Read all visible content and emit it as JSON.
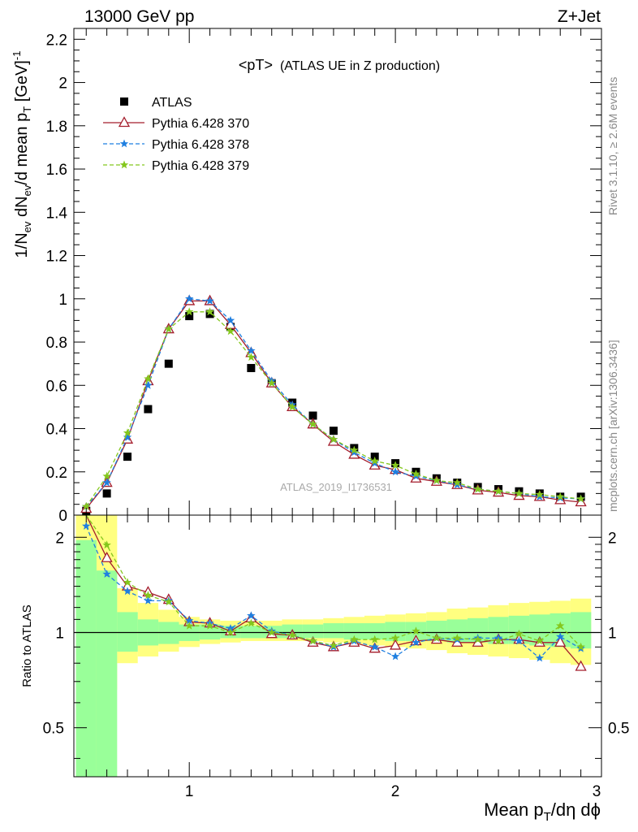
{
  "header": {
    "left": "13000 GeV pp",
    "right": "Z+Jet"
  },
  "side_labels": {
    "rivet": "Rivet 3.1.10, ≥ 2.6M events",
    "mcplots": "mcplots.cern.ch [arXiv:1306.3436]"
  },
  "chart_data": [
    {
      "type": "scatter",
      "title": "<pT>",
      "subtitle": "(ATLAS UE in Z production)",
      "watermark": "ATLAS_2019_I1736531",
      "ylabel_parts": {
        "a": "1/N",
        "b": "ev",
        "c": " dN",
        "d": "ev",
        "e": "/d mean p",
        "f": "T",
        "g": " [GeV]",
        "h": "-1"
      },
      "xlim": [
        0.44,
        3.0
      ],
      "ylim": [
        0,
        2.25
      ],
      "y_ticks": [
        "0",
        "0.2",
        "0.4",
        "0.6",
        "0.8",
        "1",
        "1.2",
        "1.4",
        "1.6",
        "1.8",
        "2",
        "2.2"
      ],
      "legend_position": "top-left",
      "x": [
        0.5,
        0.6,
        0.7,
        0.8,
        0.9,
        1.0,
        1.1,
        1.2,
        1.3,
        1.4,
        1.5,
        1.6,
        1.7,
        1.8,
        1.9,
        2.0,
        2.1,
        2.2,
        2.3,
        2.4,
        2.5,
        2.6,
        2.7,
        2.8,
        2.9
      ],
      "series": [
        {
          "name": "ATLAS",
          "color": "#000000",
          "marker": "square",
          "values": [
            0.02,
            0.1,
            0.27,
            0.49,
            0.7,
            0.92,
            0.93,
            0.87,
            0.68,
            0.61,
            0.52,
            0.46,
            0.39,
            0.31,
            0.27,
            0.24,
            0.2,
            0.17,
            0.15,
            0.13,
            0.12,
            0.11,
            0.1,
            0.085,
            0.085
          ]
        },
        {
          "name": "Pythia 6.428 370",
          "color": "#a41d2c",
          "marker": "triangle",
          "values": [
            0.03,
            0.15,
            0.35,
            0.62,
            0.86,
            0.99,
            0.99,
            0.88,
            0.75,
            0.61,
            0.5,
            0.42,
            0.34,
            0.28,
            0.23,
            0.21,
            0.17,
            0.155,
            0.14,
            0.115,
            0.105,
            0.09,
            0.085,
            0.07,
            0.06
          ]
        },
        {
          "name": "Pythia 6.428 378",
          "color": "#1f7fe0",
          "marker": "star",
          "values": [
            0.04,
            0.15,
            0.36,
            0.6,
            0.86,
            1.0,
            0.99,
            0.9,
            0.76,
            0.62,
            0.51,
            0.42,
            0.35,
            0.29,
            0.24,
            0.2,
            0.18,
            0.16,
            0.14,
            0.12,
            0.11,
            0.1,
            0.085,
            0.08,
            0.075
          ]
        },
        {
          "name": "Pythia 6.428 379",
          "color": "#84c71d",
          "marker": "star",
          "values": [
            0.04,
            0.18,
            0.38,
            0.63,
            0.86,
            0.94,
            0.94,
            0.85,
            0.73,
            0.61,
            0.5,
            0.42,
            0.35,
            0.3,
            0.25,
            0.23,
            0.19,
            0.16,
            0.15,
            0.12,
            0.11,
            0.1,
            0.095,
            0.085,
            0.075
          ]
        }
      ]
    },
    {
      "type": "line",
      "ylabel": "Ratio to ATLAS",
      "xlabel_parts": {
        "a": "Mean p",
        "b": "T",
        "c": "/dη dϕ"
      },
      "xlim": [
        0.44,
        3.0
      ],
      "ylim": [
        0.35,
        2.35
      ],
      "y_scale": "log",
      "y_ticks": [
        "0.5",
        "1",
        "2"
      ],
      "x_ticks": [
        "1",
        "2",
        "3"
      ],
      "reference_line": 1,
      "x": [
        0.5,
        0.6,
        0.7,
        0.8,
        0.9,
        1.0,
        1.1,
        1.2,
        1.3,
        1.4,
        1.5,
        1.6,
        1.7,
        1.8,
        1.9,
        2.0,
        2.1,
        2.2,
        2.3,
        2.4,
        2.5,
        2.6,
        2.7,
        2.8,
        2.9
      ],
      "bands": [
        {
          "name": "yellow",
          "color": "#ffff80",
          "low": [
            0.35,
            0.66,
            0.8,
            0.84,
            0.87,
            0.9,
            0.92,
            0.93,
            0.94,
            0.94,
            0.94,
            0.94,
            0.93,
            0.92,
            0.91,
            0.9,
            0.89,
            0.88,
            0.86,
            0.85,
            0.84,
            0.83,
            0.82,
            0.8,
            0.79
          ],
          "high": [
            2.35,
            2.35,
            1.38,
            1.24,
            1.18,
            1.12,
            1.1,
            1.09,
            1.09,
            1.09,
            1.1,
            1.1,
            1.11,
            1.12,
            1.13,
            1.14,
            1.15,
            1.16,
            1.19,
            1.2,
            1.22,
            1.24,
            1.25,
            1.26,
            1.28
          ]
        },
        {
          "name": "green",
          "color": "#99ff99",
          "low": [
            0.35,
            0.35,
            0.87,
            0.91,
            0.92,
            0.94,
            0.95,
            0.96,
            0.96,
            0.96,
            0.96,
            0.96,
            0.96,
            0.95,
            0.95,
            0.94,
            0.94,
            0.94,
            0.93,
            0.93,
            0.92,
            0.92,
            0.91,
            0.9,
            0.89
          ],
          "high": [
            1.96,
            1.57,
            1.16,
            1.1,
            1.08,
            1.06,
            1.06,
            1.05,
            1.05,
            1.05,
            1.06,
            1.06,
            1.07,
            1.07,
            1.07,
            1.08,
            1.08,
            1.09,
            1.1,
            1.11,
            1.12,
            1.13,
            1.14,
            1.15,
            1.16
          ]
        }
      ],
      "series": [
        {
          "name": "Pythia 6.428 370",
          "color": "#a41d2c",
          "marker": "triangle",
          "values": [
            2.35,
            1.72,
            1.4,
            1.34,
            1.27,
            1.08,
            1.07,
            1.01,
            1.11,
            0.99,
            0.98,
            0.93,
            0.9,
            0.93,
            0.89,
            0.91,
            0.94,
            0.95,
            0.93,
            0.93,
            0.95,
            0.95,
            0.93,
            0.93,
            0.78
          ]
        },
        {
          "name": "Pythia 6.428 378",
          "color": "#1f7fe0",
          "marker": "star",
          "values": [
            2.17,
            1.53,
            1.35,
            1.26,
            1.26,
            1.09,
            1.07,
            1.03,
            1.13,
            1.01,
            0.98,
            0.94,
            0.9,
            0.94,
            0.9,
            0.84,
            0.93,
            0.96,
            0.95,
            0.96,
            0.96,
            0.94,
            0.83,
            0.97,
            0.89
          ]
        },
        {
          "name": "Pythia 6.428 379",
          "color": "#84c71d",
          "marker": "star",
          "values": [
            2.35,
            1.89,
            1.44,
            1.31,
            1.25,
            1.05,
            1.05,
            1.0,
            1.07,
            1.0,
            0.98,
            0.94,
            0.91,
            0.95,
            0.95,
            0.96,
            1.01,
            0.96,
            0.96,
            0.95,
            0.94,
            0.99,
            0.94,
            1.05,
            0.9
          ]
        }
      ]
    }
  ]
}
